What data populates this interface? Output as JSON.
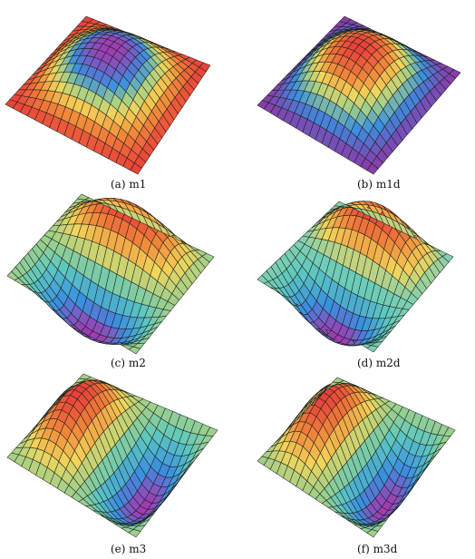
{
  "figure": {
    "panels": [
      {
        "id": "a",
        "caption": "(a) m1",
        "mode": "bump",
        "palette": "warm-ring"
      },
      {
        "id": "b",
        "caption": "(b) m1d",
        "mode": "bump",
        "palette": "purple-ring"
      },
      {
        "id": "c",
        "caption": "(c) m2",
        "mode": "dipole-diag",
        "palette": "green-dipole"
      },
      {
        "id": "d",
        "caption": "(d) m2d",
        "mode": "dipole-diag",
        "palette": "teal-dipole"
      },
      {
        "id": "e",
        "caption": "(e) m3",
        "mode": "dipole-vert",
        "palette": "green-dipole"
      },
      {
        "id": "f",
        "caption": "(f) m3d",
        "mode": "dipole-vert",
        "palette": "green-dipole"
      }
    ],
    "colors": {
      "grid_line": "#1a1a1a",
      "red": "#e8403a",
      "orange": "#f08a3a",
      "yellow": "#f2d65a",
      "green": "#9fd08a",
      "teal": "#5cc8c0",
      "blue": "#3a8fe0",
      "purple": "#8a3aa8",
      "magenta": "#a23ab0"
    }
  }
}
